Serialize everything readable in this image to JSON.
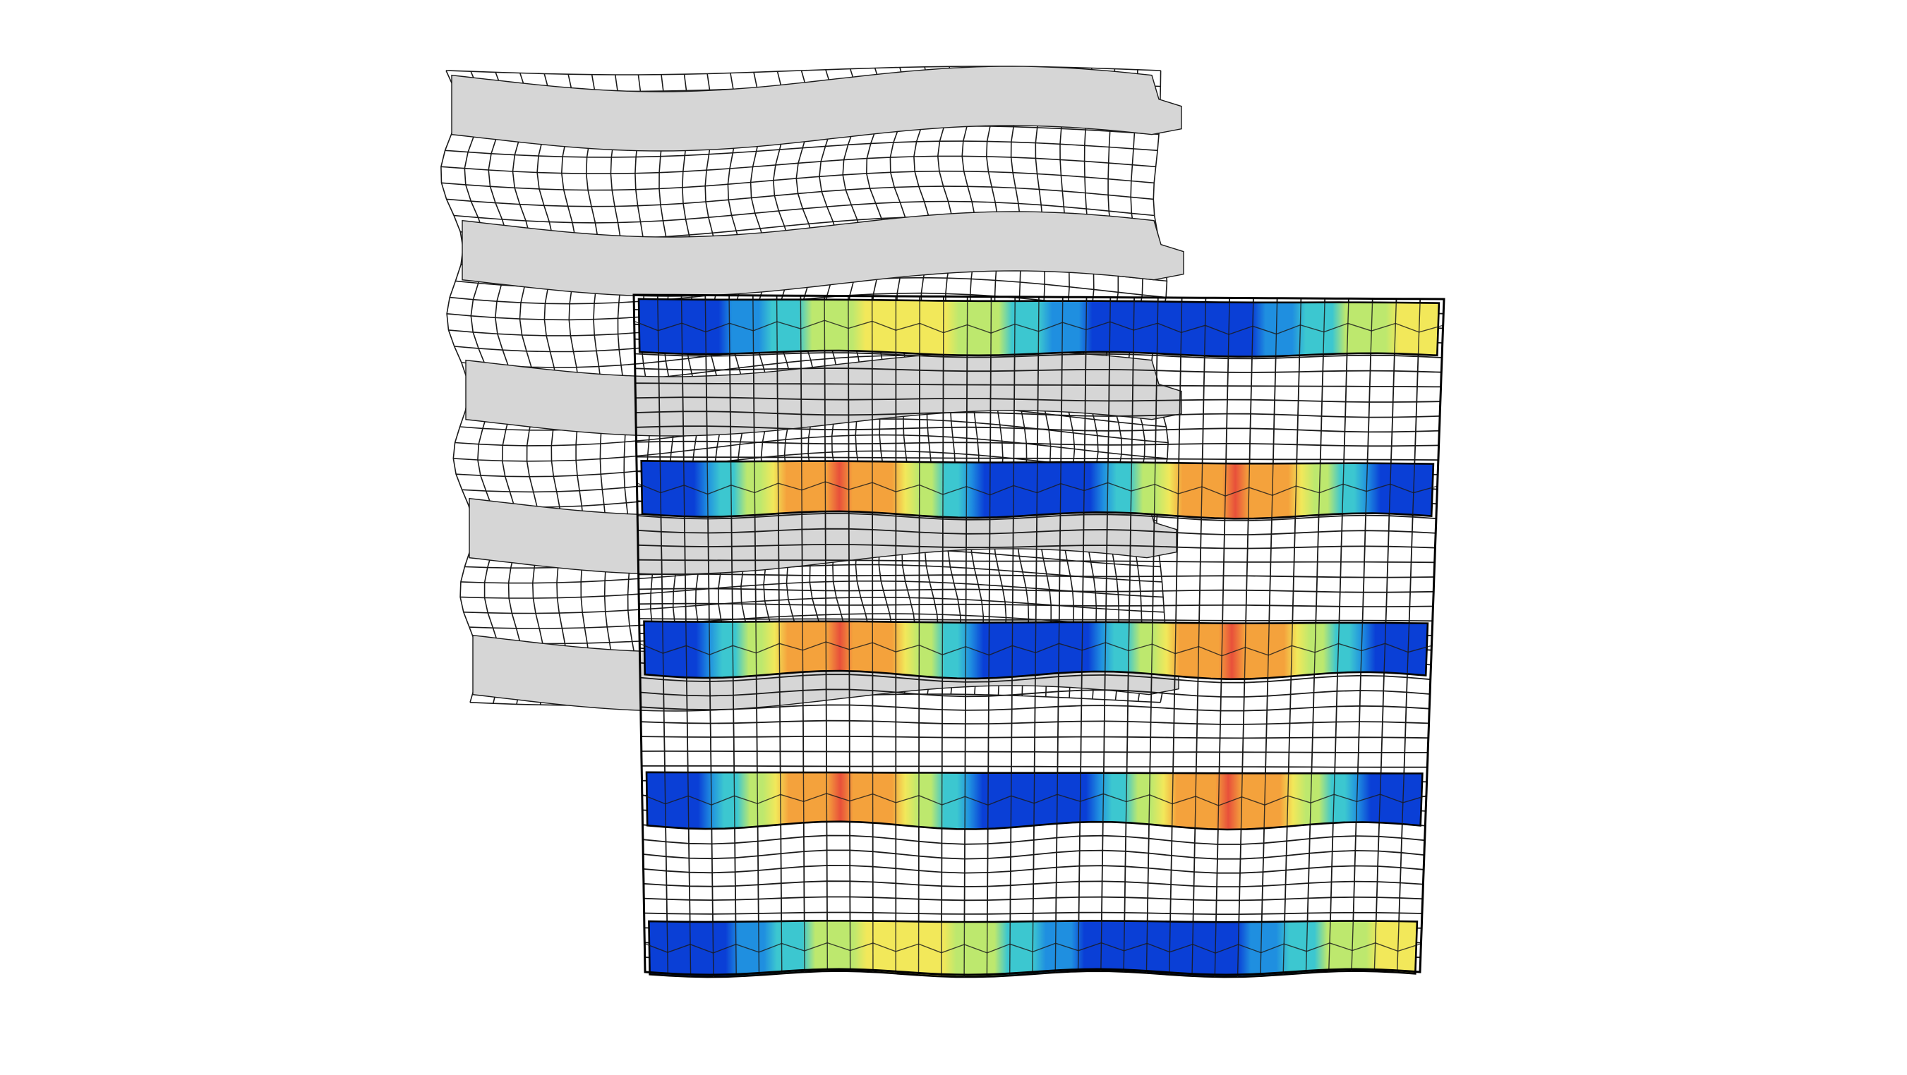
{
  "figure": {
    "description_free": true,
    "colors": {
      "background": "#ffffff",
      "mesh_line": "#1a1a1a",
      "reference_fibre": "#d6d6d6",
      "frame_outline": "#000000",
      "colormap": [
        "#0a3fd6",
        "#1f8fe0",
        "#3cc7d0",
        "#bde86e",
        "#f2e85a",
        "#f4a23c",
        "#e8503a"
      ]
    },
    "reference_panel": {
      "fibre_count": 5
    },
    "deformed_panel": {
      "fibre_count": 5,
      "field_cycles_per_fibre": [
        1.5,
        1.0,
        1.0,
        1.0,
        1.5
      ],
      "field_phase": [
        0.0,
        0.0,
        0.0,
        0.0,
        0.0
      ]
    }
  }
}
